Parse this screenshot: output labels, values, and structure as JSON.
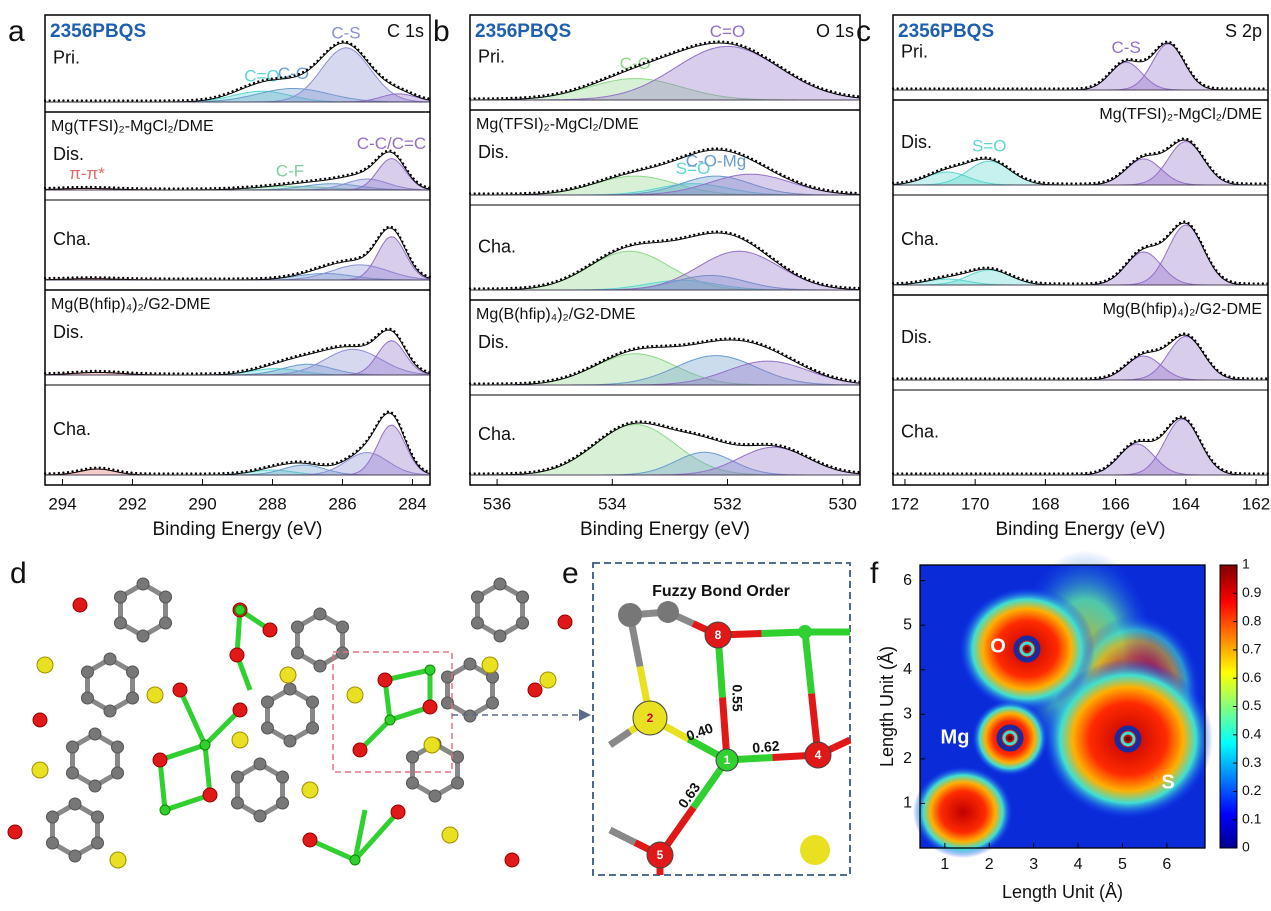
{
  "chart_data": [
    {
      "type": "xps",
      "label": "a",
      "tag": "2356PBQS",
      "core": "C 1s",
      "xlabel": "Binding Energy (eV)",
      "xlim": [
        294.5,
        283.5
      ],
      "xticks": [
        294,
        292,
        290,
        288,
        286,
        284
      ],
      "rows": [
        {
          "label": "Pri.",
          "peaks": [
            {
              "name": "C=O",
              "center": 288.3,
              "height": 0.2,
              "width": 0.8,
              "color": "#5cd6cf"
            },
            {
              "name": "C-O",
              "center": 287.4,
              "height": 0.25,
              "width": 1.0,
              "color": "#6a9ccc"
            },
            {
              "name": "C-S",
              "center": 285.9,
              "height": 1.0,
              "width": 0.7,
              "color": "#8a90d4"
            },
            {
              "center": 284.4,
              "height": 0.15,
              "width": 0.5,
              "color": "#9370c8"
            }
          ]
        },
        {
          "group": "Mg(TFSI)₂-MgCl₂/DME",
          "label": "Dis.",
          "peaks": [
            {
              "name": "π-π*",
              "center": 293.3,
              "height": 0.05,
              "width": 0.8,
              "color": "#e06a6a"
            },
            {
              "name": "C-F",
              "center": 287.5,
              "height": 0.12,
              "width": 1.0,
              "color": "#7fd0a0"
            },
            {
              "center": 286.3,
              "height": 0.2,
              "width": 0.8,
              "color": "#6a9ccc"
            },
            {
              "center": 285.3,
              "height": 0.35,
              "width": 0.6,
              "color": "#8a90d4"
            },
            {
              "name": "C-C/C=C",
              "center": 284.6,
              "height": 1.0,
              "width": 0.4,
              "color": "#9370c8"
            }
          ]
        },
        {
          "label": "Cha.",
          "peaks": [
            {
              "center": 293.2,
              "height": 0.03,
              "width": 0.8,
              "color": "#e06a6a"
            },
            {
              "center": 286.5,
              "height": 0.15,
              "width": 0.8,
              "color": "#6a9ccc"
            },
            {
              "center": 285.5,
              "height": 0.35,
              "width": 0.8,
              "color": "#8a90d4"
            },
            {
              "center": 284.6,
              "height": 1.0,
              "width": 0.4,
              "color": "#9370c8"
            }
          ]
        },
        {
          "group": "Mg(B(hfip)₄)₂/G2-DME",
          "label": "Dis.",
          "peaks": [
            {
              "center": 293.0,
              "height": 0.06,
              "width": 0.7,
              "color": "#e06a6a"
            },
            {
              "center": 287.9,
              "height": 0.15,
              "width": 0.7,
              "color": "#5cd6cf"
            },
            {
              "center": 287.0,
              "height": 0.25,
              "width": 0.7,
              "color": "#6a9ccc"
            },
            {
              "center": 285.7,
              "height": 0.6,
              "width": 0.8,
              "color": "#8a90d4"
            },
            {
              "center": 284.6,
              "height": 0.8,
              "width": 0.4,
              "color": "#9370c8"
            }
          ]
        },
        {
          "label": "Cha.",
          "peaks": [
            {
              "center": 293.0,
              "height": 0.12,
              "width": 0.5,
              "color": "#e06a6a"
            },
            {
              "center": 288.0,
              "height": 0.1,
              "width": 0.6,
              "color": "#5cd6cf"
            },
            {
              "center": 287.1,
              "height": 0.2,
              "width": 0.6,
              "color": "#6a9ccc"
            },
            {
              "center": 285.3,
              "height": 0.45,
              "width": 0.6,
              "color": "#8a90d4"
            },
            {
              "center": 284.6,
              "height": 1.0,
              "width": 0.4,
              "color": "#9370c8"
            }
          ]
        }
      ]
    },
    {
      "type": "xps",
      "label": "b",
      "tag": "2356PBQS",
      "core": "O 1s",
      "xlabel": "Binding Energy (eV)",
      "xlim": [
        536.47,
        529.7
      ],
      "xticks": [
        536,
        534,
        532,
        530
      ],
      "rows": [
        {
          "label": "Pri.",
          "peaks": [
            {
              "name": "C-O",
              "center": 533.6,
              "height": 0.4,
              "width": 0.8,
              "color": "#8ed88a"
            },
            {
              "name": "C=O",
              "center": 532.0,
              "height": 1.0,
              "width": 0.9,
              "color": "#9370c8"
            }
          ]
        },
        {
          "group": "Mg(TFSI)₂-MgCl₂/DME",
          "label": "Dis.",
          "peaks": [
            {
              "center": 533.6,
              "height": 0.5,
              "width": 0.7,
              "color": "#8ed88a"
            },
            {
              "name": "S=O",
              "center": 532.6,
              "height": 0.3,
              "width": 0.6,
              "color": "#5cd6cf"
            },
            {
              "name": "C-O-Mg",
              "center": 532.2,
              "height": 0.5,
              "width": 0.6,
              "color": "#6a9ccc"
            },
            {
              "center": 531.6,
              "height": 0.55,
              "width": 0.7,
              "color": "#9370c8"
            }
          ]
        },
        {
          "label": "Cha.",
          "peaks": [
            {
              "center": 533.7,
              "height": 0.8,
              "width": 0.7,
              "color": "#8ed88a"
            },
            {
              "center": 532.8,
              "height": 0.2,
              "width": 0.6,
              "color": "#5cd6cf"
            },
            {
              "center": 532.3,
              "height": 0.3,
              "width": 0.6,
              "color": "#6a9ccc"
            },
            {
              "center": 531.8,
              "height": 0.8,
              "width": 0.7,
              "color": "#9370c8"
            }
          ]
        },
        {
          "group": "Mg(B(hfip)₄)₂/G2-DME",
          "label": "Dis.",
          "peaks": [
            {
              "center": 533.6,
              "height": 0.85,
              "width": 0.7,
              "color": "#8ed88a"
            },
            {
              "center": 532.2,
              "height": 0.8,
              "width": 0.7,
              "color": "#6a9ccc"
            },
            {
              "center": 531.3,
              "height": 0.65,
              "width": 0.7,
              "color": "#9370c8"
            }
          ]
        },
        {
          "label": "Cha.",
          "peaks": [
            {
              "center": 533.6,
              "height": 1.0,
              "width": 0.7,
              "color": "#8ed88a"
            },
            {
              "center": 532.4,
              "height": 0.45,
              "width": 0.5,
              "color": "#6a9ccc"
            },
            {
              "center": 531.2,
              "height": 0.55,
              "width": 0.6,
              "color": "#9370c8"
            }
          ]
        }
      ]
    },
    {
      "type": "xps",
      "label": "c",
      "tag": "2356PBQS",
      "core": "S 2p",
      "xlabel": "Binding Energy (eV)",
      "xlim": [
        172.34,
        161.66
      ],
      "xticks": [
        172,
        170,
        168,
        166,
        164,
        162
      ],
      "rows": [
        {
          "label": "Pri.",
          "peaks": [
            {
              "name": "C-S",
              "center": 165.7,
              "height": 0.6,
              "width": 0.45,
              "color": "#9370c8"
            },
            {
              "center": 164.5,
              "height": 1.0,
              "width": 0.45,
              "color": "#9370c8"
            }
          ]
        },
        {
          "group": "Mg(TFSI)₂-MgCl₂/DME",
          "label": "Dis.",
          "peaks": [
            {
              "center": 170.8,
              "height": 0.3,
              "width": 0.6,
              "color": "#5cd6cf"
            },
            {
              "name": "S=O",
              "center": 169.6,
              "height": 0.55,
              "width": 0.6,
              "color": "#5cd6cf"
            },
            {
              "center": 165.2,
              "height": 0.6,
              "width": 0.5,
              "color": "#9370c8"
            },
            {
              "center": 164.0,
              "height": 1.0,
              "width": 0.5,
              "color": "#9370c8"
            }
          ]
        },
        {
          "label": "Cha.",
          "peaks": [
            {
              "center": 170.8,
              "height": 0.1,
              "width": 0.6,
              "color": "#5cd6cf"
            },
            {
              "center": 169.6,
              "height": 0.25,
              "width": 0.6,
              "color": "#5cd6cf"
            },
            {
              "center": 165.2,
              "height": 0.55,
              "width": 0.5,
              "color": "#9370c8"
            },
            {
              "center": 164.0,
              "height": 1.0,
              "width": 0.5,
              "color": "#9370c8"
            }
          ]
        },
        {
          "group": "Mg(B(hfip)₄)₂/G2-DME",
          "label": "Dis.",
          "peaks": [
            {
              "center": 165.2,
              "height": 0.55,
              "width": 0.5,
              "color": "#9370c8"
            },
            {
              "center": 164.0,
              "height": 1.0,
              "width": 0.5,
              "color": "#9370c8"
            }
          ]
        },
        {
          "label": "Cha.",
          "peaks": [
            {
              "center": 165.4,
              "height": 0.5,
              "width": 0.5,
              "color": "#9370c8"
            },
            {
              "center": 164.1,
              "height": 0.9,
              "width": 0.5,
              "color": "#9370c8"
            }
          ]
        }
      ]
    },
    {
      "type": "heatmap",
      "label": "f",
      "xlabel": "Length Unit (Å)",
      "ylabel": "Length Unit (Å)",
      "xlim": [
        0.44,
        6.86
      ],
      "ylim": [
        0,
        6.35
      ],
      "xticks": [
        1,
        2,
        3,
        4,
        5,
        6
      ],
      "yticks": [
        1,
        2,
        3,
        4,
        5,
        6
      ],
      "colorbar_lim": [
        0,
        1
      ],
      "colorbar_ticks": [
        0,
        0.1,
        0.2,
        0.3,
        0.4,
        0.5,
        0.6,
        0.7,
        0.8,
        0.9,
        1
      ],
      "atoms": [
        "O",
        "Mg",
        "S"
      ]
    }
  ],
  "panels": {
    "d": {
      "label": "d"
    },
    "e": {
      "label": "e",
      "title": "Fuzzy Bond Order",
      "atoms": [
        "1",
        "2",
        "4",
        "5",
        "8"
      ],
      "bonds": [
        "0.55",
        "0.40",
        "0.62",
        "0.63"
      ]
    }
  }
}
